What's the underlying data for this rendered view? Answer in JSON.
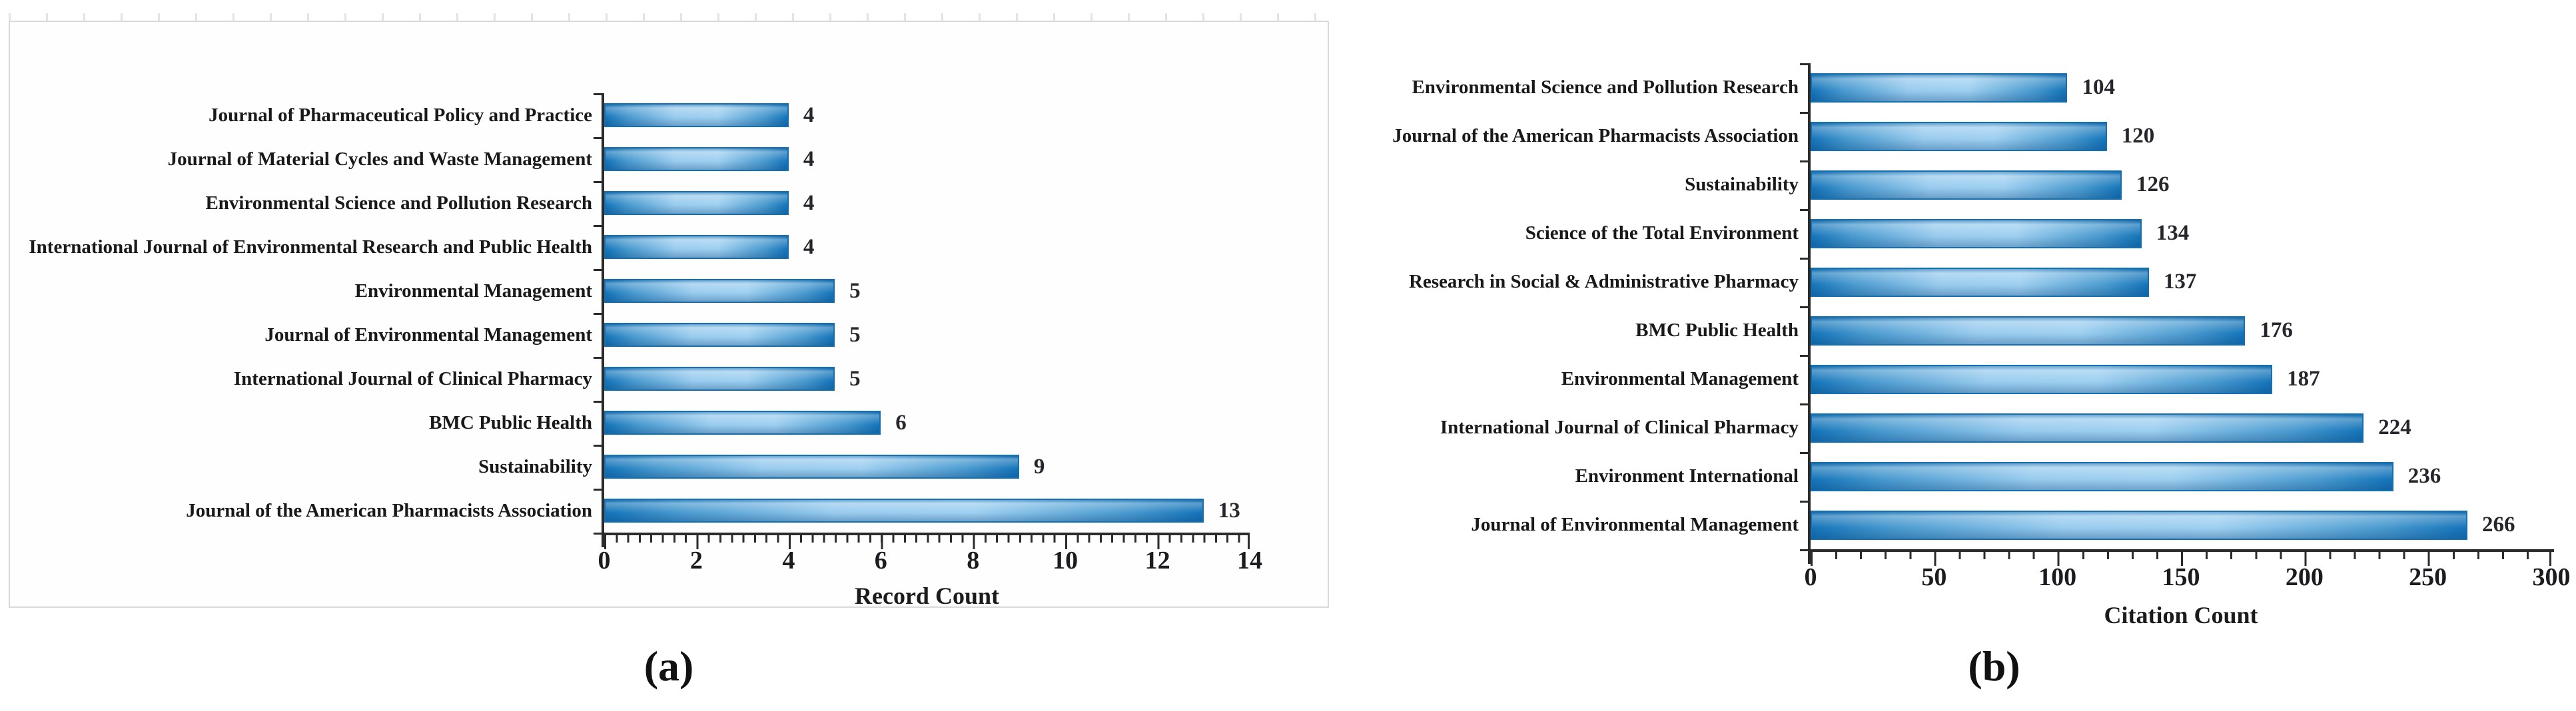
{
  "figure": {
    "caption_a": "(a)",
    "caption_b": "(b)"
  },
  "colors": {
    "bar_dark": "#1474b9",
    "bar_light": "#9dcff0",
    "bar_border": "#1570b2",
    "axis": "#2b2b2b",
    "frame_gray": "#d9d9d9",
    "text": "#1b1b1b"
  },
  "chart_data": [
    {
      "type": "bar",
      "orientation": "horizontal",
      "title": "",
      "xlabel": "Record Count",
      "ylabel": "",
      "xlim": [
        0,
        14
      ],
      "xticks": [
        0,
        2,
        4,
        6,
        8,
        10,
        12,
        14
      ],
      "minor_tick_step": 0.25,
      "grid": false,
      "legend": false,
      "categories": [
        "Journal of Pharmaceutical Policy and Practice",
        "Journal of Material Cycles and Waste Management",
        "Environmental Science and Pollution Research",
        "International Journal of Environmental Research and Public Health",
        "Environmental Management",
        "Journal of Environmental Management",
        "International Journal of Clinical Pharmacy",
        "BMC Public Health",
        "Sustainability",
        "Journal of the American Pharmacists Association"
      ],
      "values": [
        4,
        4,
        4,
        4,
        5,
        5,
        5,
        6,
        9,
        13
      ]
    },
    {
      "type": "bar",
      "orientation": "horizontal",
      "title": "",
      "xlabel": "Citation Count",
      "ylabel": "",
      "xlim": [
        0,
        300
      ],
      "xticks": [
        0,
        50,
        100,
        150,
        200,
        250,
        300
      ],
      "minor_tick_step": 10,
      "grid": false,
      "legend": false,
      "categories": [
        "Environmental Science and Pollution Research",
        "Journal of the American Pharmacists Association",
        "Sustainability",
        "Science of the Total Environment",
        "Research in Social & Administrative Pharmacy",
        "BMC Public Health",
        "Environmental Management",
        "International Journal of Clinical Pharmacy",
        "Environment International",
        "Journal of Environmental Management"
      ],
      "values": [
        104,
        120,
        126,
        134,
        137,
        176,
        187,
        224,
        236,
        266
      ]
    }
  ]
}
